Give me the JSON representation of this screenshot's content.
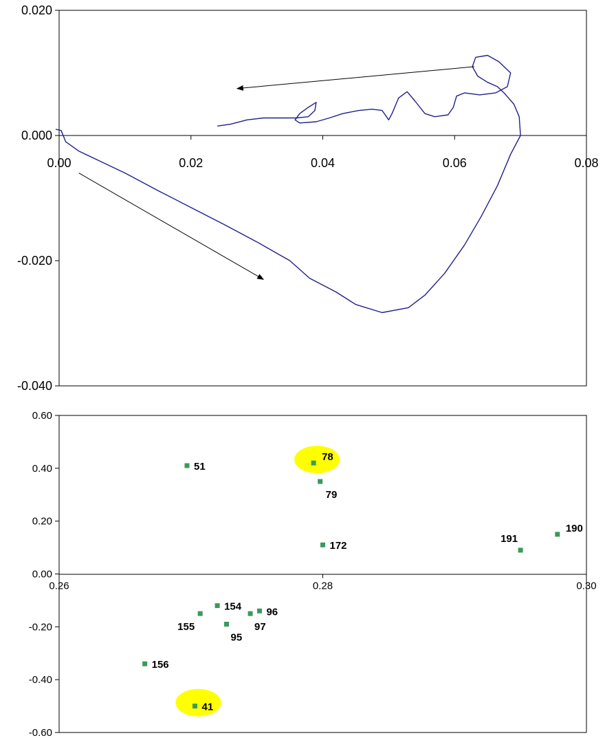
{
  "chart_data": [
    {
      "type": "line",
      "xlim": [
        0.0,
        0.08
      ],
      "ylim": [
        -0.04,
        0.02
      ],
      "x_ticks": [
        "0.00",
        "0.02",
        "0.04",
        "0.06",
        "0.08"
      ],
      "y_ticks": [
        "0.020",
        "0.000",
        "-0.020",
        "-0.040"
      ],
      "grid": false,
      "line_color": "#1f1f8c",
      "series": [
        {
          "points": [
            [
              -0.0005,
              0.001
            ],
            [
              0.0003,
              0.0008
            ],
            [
              0.001,
              -0.001
            ],
            [
              0.003,
              -0.0025
            ],
            [
              0.006,
              -0.004
            ],
            [
              0.01,
              -0.006
            ],
            [
              0.015,
              -0.0088
            ],
            [
              0.02,
              -0.0115
            ],
            [
              0.025,
              -0.0142
            ],
            [
              0.03,
              -0.017
            ],
            [
              0.035,
              -0.02
            ],
            [
              0.038,
              -0.0228
            ],
            [
              0.042,
              -0.025
            ],
            [
              0.045,
              -0.027
            ],
            [
              0.049,
              -0.0283
            ],
            [
              0.053,
              -0.0275
            ],
            [
              0.0555,
              -0.0255
            ],
            [
              0.0585,
              -0.022
            ],
            [
              0.0615,
              -0.0175
            ],
            [
              0.064,
              -0.013
            ],
            [
              0.0665,
              -0.008
            ],
            [
              0.0685,
              -0.003
            ],
            [
              0.07,
              0.0
            ],
            [
              0.0698,
              0.003
            ],
            [
              0.069,
              0.005
            ],
            [
              0.0675,
              0.0068
            ],
            [
              0.0665,
              0.0078
            ],
            [
              0.065,
              0.0085
            ],
            [
              0.0635,
              0.0095
            ],
            [
              0.0627,
              0.011
            ],
            [
              0.0632,
              0.0125
            ],
            [
              0.065,
              0.0128
            ],
            [
              0.0667,
              0.0118
            ],
            [
              0.0685,
              0.01
            ],
            [
              0.068,
              0.0078
            ],
            [
              0.0662,
              0.0068
            ],
            [
              0.0638,
              0.0065
            ],
            [
              0.0615,
              0.0068
            ],
            [
              0.0603,
              0.0063
            ],
            [
              0.0598,
              0.0045
            ],
            [
              0.059,
              0.0033
            ],
            [
              0.057,
              0.003
            ],
            [
              0.0555,
              0.0035
            ],
            [
              0.054,
              0.0055
            ],
            [
              0.0528,
              0.007
            ],
            [
              0.0515,
              0.006
            ],
            [
              0.0505,
              0.0035
            ],
            [
              0.05,
              0.0025
            ],
            [
              0.049,
              0.004
            ],
            [
              0.0475,
              0.0042
            ],
            [
              0.0455,
              0.004
            ],
            [
              0.043,
              0.0035
            ],
            [
              0.041,
              0.0028
            ],
            [
              0.039,
              0.0022
            ],
            [
              0.0365,
              0.002
            ],
            [
              0.0358,
              0.0025
            ],
            [
              0.0365,
              0.0035
            ],
            [
              0.0378,
              0.0045
            ],
            [
              0.039,
              0.0053
            ],
            [
              0.0388,
              0.004
            ],
            [
              0.0378,
              0.003
            ],
            [
              0.036,
              0.0028
            ],
            [
              0.034,
              0.0028
            ],
            [
              0.031,
              0.0028
            ],
            [
              0.0285,
              0.0025
            ],
            [
              0.026,
              0.0018
            ],
            [
              0.024,
              0.0015
            ]
          ]
        }
      ],
      "annotations": [
        {
          "kind": "arrow",
          "from": [
            0.063,
            0.011
          ],
          "to": [
            0.027,
            0.0075
          ]
        },
        {
          "kind": "arrow",
          "from": [
            0.003,
            -0.006
          ],
          "to": [
            0.031,
            -0.023
          ]
        }
      ]
    },
    {
      "type": "scatter",
      "xlim": [
        0.26,
        0.3
      ],
      "ylim": [
        -0.6,
        0.6
      ],
      "x_ticks": [
        "0.26",
        "0.28",
        "0.30"
      ],
      "y_ticks": [
        "0.60",
        "0.40",
        "0.20",
        "0.00",
        "-0.20",
        "-0.40",
        "-0.60"
      ],
      "grid": false,
      "marker_color": "#3a9a5a",
      "highlight_color": "#ffff00",
      "points": [
        {
          "label": "51",
          "x": 0.2697,
          "y": 0.41,
          "highlight": false,
          "label_pos": "right"
        },
        {
          "label": "78",
          "x": 0.2793,
          "y": 0.42,
          "highlight": true,
          "label_pos": "upper-right"
        },
        {
          "label": "79",
          "x": 0.2798,
          "y": 0.35,
          "highlight": false,
          "label_pos": "lower-right"
        },
        {
          "label": "172",
          "x": 0.28,
          "y": 0.11,
          "highlight": false,
          "label_pos": "right"
        },
        {
          "label": "191",
          "x": 0.295,
          "y": 0.09,
          "highlight": false,
          "label_pos": "above-left"
        },
        {
          "label": "190",
          "x": 0.2978,
          "y": 0.15,
          "highlight": false,
          "label_pos": "upper-right"
        },
        {
          "label": "154",
          "x": 0.272,
          "y": -0.12,
          "highlight": false,
          "label_pos": "right"
        },
        {
          "label": "155",
          "x": 0.2707,
          "y": -0.15,
          "highlight": false,
          "label_pos": "lower-left"
        },
        {
          "label": "95",
          "x": 0.2727,
          "y": -0.19,
          "highlight": false,
          "label_pos": "below"
        },
        {
          "label": "97",
          "x": 0.2745,
          "y": -0.15,
          "highlight": false,
          "label_pos": "below"
        },
        {
          "label": "96",
          "x": 0.2752,
          "y": -0.14,
          "highlight": false,
          "label_pos": "right"
        },
        {
          "label": "156",
          "x": 0.2665,
          "y": -0.34,
          "highlight": false,
          "label_pos": "right"
        },
        {
          "label": "41",
          "x": 0.2703,
          "y": -0.5,
          "highlight": true,
          "label_pos": "right"
        }
      ]
    }
  ]
}
